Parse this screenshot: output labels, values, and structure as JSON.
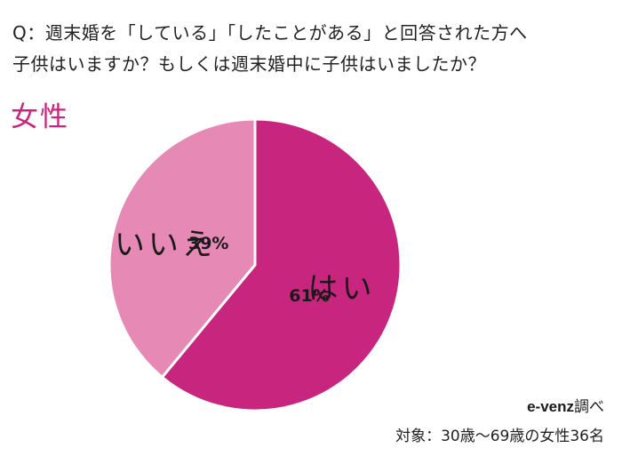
{
  "question": {
    "line1": "Q：週末婚を「している」「したことがある」と回答された方へ",
    "line2": "子供はいますか？もしくは週末婚中に子供はいましたか？"
  },
  "segment_title": "女性",
  "colors": {
    "accent": "#c8267e",
    "yes": "#c8267e",
    "no": "#e68ab5",
    "slice_border": "#ffffff"
  },
  "chart_data": {
    "type": "pie",
    "title": "",
    "start": "12 o'clock, clockwise",
    "slices": [
      {
        "label": "はい",
        "value": 61,
        "value_label": "61%",
        "color": "#c8267e"
      },
      {
        "label": "いいえ",
        "value": 39,
        "value_label": "39%",
        "color": "#e68ab5"
      }
    ]
  },
  "footer": {
    "source_brand": "e-venz",
    "source_suffix": "調べ",
    "target": "対象：30歳〜69歳の女性36名"
  }
}
